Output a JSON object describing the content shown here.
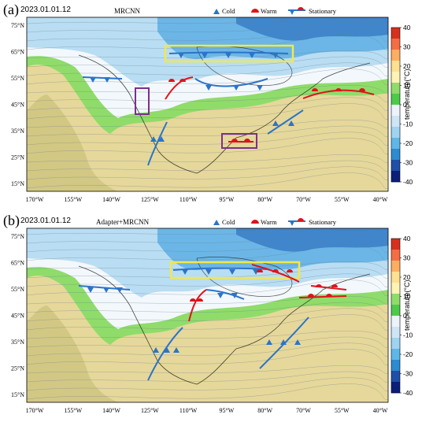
{
  "panels": [
    {
      "id": "a",
      "letter": "(a)",
      "datetime": "2023.01.01.12",
      "method": "MRCNN"
    },
    {
      "id": "b",
      "letter": "(b)",
      "datetime": "2023.01.01.12",
      "method": "Adapter+MRCNN"
    }
  ],
  "legend": {
    "cold": "Cold",
    "warm": "Warm",
    "stationary": "Stationary"
  },
  "front_colors": {
    "cold": "#2b74c9",
    "warm": "#e0131b",
    "highlight_box": "#f2e84a",
    "marker_box": "#7b2f8e"
  },
  "colorbar": {
    "title": "temperature(°C)",
    "ticks": [
      "40",
      "30",
      "20",
      "10",
      "0",
      "-10",
      "-20",
      "-30",
      "-40"
    ],
    "colors": [
      "#d7301f",
      "#f46d43",
      "#fdae61",
      "#fee090",
      "#fff3b5",
      "#8fdc6a",
      "#4ec94a",
      "#ecf3fb",
      "#cfe5f5",
      "#9fd3ef",
      "#5eb7e6",
      "#2c8bd1",
      "#1f4fa8",
      "#0b1e7a"
    ]
  },
  "axes": {
    "lat_labels": [
      "75°N",
      "65°N",
      "55°N",
      "45°N",
      "35°N",
      "25°N",
      "15°N"
    ],
    "lon_labels": [
      "170°W",
      "155°W",
      "140°W",
      "125°W",
      "110°W",
      "95°W",
      "80°W",
      "70°W",
      "55°W",
      "40°W"
    ]
  }
}
